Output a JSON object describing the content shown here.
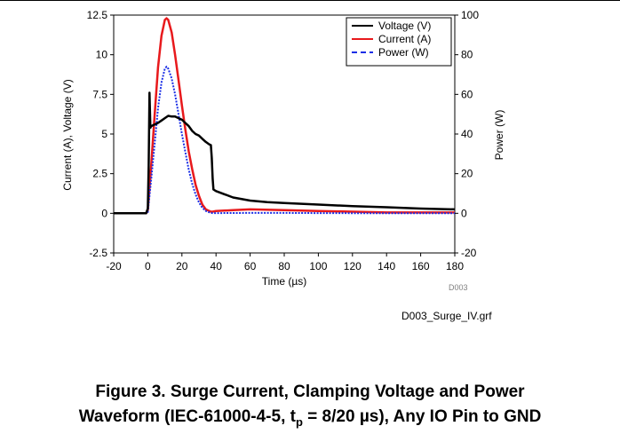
{
  "chart_data": {
    "type": "line",
    "xlabel": "Time (µs)",
    "ylabel_left": "Current (A), Voltage (V)",
    "ylabel_right": "Power (W)",
    "xlim": [
      -20,
      180
    ],
    "ylim_left": [
      -2.5,
      12.5
    ],
    "ylim_right": [
      -20,
      100
    ],
    "xticks": [
      -20,
      0,
      20,
      40,
      60,
      80,
      100,
      120,
      140,
      160,
      180
    ],
    "yticks_left": [
      "-2.5",
      "0",
      "2.5",
      "5",
      "7.5",
      "10",
      "12.5"
    ],
    "yticks_left_values": [
      -2.5,
      0,
      2.5,
      5,
      7.5,
      10,
      12.5
    ],
    "yticks_right": [
      "-20",
      "0",
      "20",
      "40",
      "60",
      "80",
      "100"
    ],
    "yticks_right_values": [
      -20,
      0,
      20,
      40,
      60,
      80,
      100
    ],
    "grid": false,
    "legend_position": "top-right",
    "watermark": "D003",
    "series": [
      {
        "name": "Voltage (V)",
        "axis": "left",
        "color": "#000000",
        "style": "solid",
        "x": [
          -20,
          -1,
          0,
          0.5,
          1,
          1.5,
          2,
          4,
          6,
          8,
          10,
          12,
          14,
          16,
          18,
          20,
          22,
          24,
          26,
          28,
          30,
          32,
          34,
          36,
          37,
          37.5,
          38,
          38.5,
          40,
          45,
          50,
          60,
          70,
          80,
          100,
          120,
          140,
          160,
          180
        ],
        "y": [
          0,
          0,
          0.3,
          3.0,
          7.6,
          5.4,
          5.5,
          5.6,
          5.7,
          5.85,
          6.0,
          6.15,
          6.1,
          6.1,
          6.0,
          5.9,
          5.7,
          5.5,
          5.2,
          5.0,
          4.9,
          4.7,
          4.5,
          4.35,
          4.3,
          3.5,
          2.2,
          1.5,
          1.4,
          1.2,
          1.0,
          0.8,
          0.7,
          0.65,
          0.55,
          0.45,
          0.38,
          0.3,
          0.25
        ]
      },
      {
        "name": "Current (A)",
        "axis": "left",
        "color": "#e8191c",
        "style": "solid",
        "x": [
          -20,
          -1,
          0,
          2,
          4,
          6,
          8,
          10,
          11,
          12,
          14,
          16,
          18,
          20,
          22,
          24,
          26,
          28,
          30,
          32,
          34,
          36,
          37,
          38,
          40,
          50,
          60,
          80,
          100,
          120,
          140,
          160,
          180
        ],
        "y": [
          0,
          0,
          0.2,
          3.0,
          6.2,
          9.2,
          11.2,
          12.2,
          12.3,
          12.2,
          11.4,
          10.0,
          8.4,
          6.8,
          5.3,
          3.9,
          2.8,
          1.8,
          1.1,
          0.55,
          0.25,
          0.15,
          0.1,
          0.1,
          0.15,
          0.2,
          0.25,
          0.2,
          0.15,
          0.1,
          0.05,
          0.05,
          0.05
        ]
      },
      {
        "name": "Power (W)",
        "axis": "right",
        "color": "#1b2fe6",
        "style": "dashed",
        "x": [
          -20,
          -1,
          0,
          2,
          4,
          6,
          8,
          10,
          11,
          12,
          14,
          16,
          18,
          20,
          22,
          24,
          26,
          28,
          30,
          32,
          34,
          36,
          37,
          38,
          40,
          60,
          80,
          100,
          120,
          140,
          160,
          180
        ],
        "y": [
          0,
          0,
          0.5,
          17,
          35,
          53,
          66,
          73,
          74,
          73,
          68,
          60,
          50,
          40,
          31,
          22,
          15,
          9.5,
          5.5,
          2.8,
          1.2,
          0.5,
          0.2,
          0.1,
          0.1,
          0.2,
          0.2,
          0.1,
          0.05,
          0.05,
          0.03,
          0.02
        ]
      }
    ]
  },
  "chart_filename": "D003_Surge_IV.grf",
  "caption": {
    "line1": "Figure 3. Surge Current, Clamping Voltage and Power",
    "line2_pre": "Waveform (IEC-61000-4-5, t",
    "line2_sub": "p",
    "line2_post": " = 8/20 µs), Any IO Pin to GND"
  }
}
